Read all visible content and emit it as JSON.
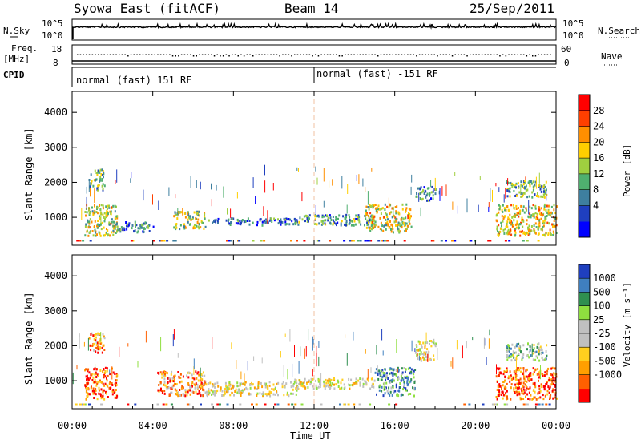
{
  "header": {
    "station": "Syowa East (fitACF)",
    "beam": "Beam 14",
    "date": "25/Sep/2011"
  },
  "top_panels": {
    "nsky_label": "N.Sky",
    "nsky_ticks": [
      "10^5",
      "10^0"
    ],
    "nsearch_label": "N.Search",
    "nsearch_ticks": [
      "10^5",
      "10^0"
    ],
    "freq_label": "Freq.",
    "freq_unit": "[MHz]",
    "freq_ticks": [
      "18",
      "8"
    ],
    "nave_label": "Nave",
    "nave_ticks": [
      "60",
      "0"
    ],
    "cpid_label": "CPID",
    "cpid_segments": [
      {
        "label": "normal (fast) 151 RF",
        "start_hour": 0
      },
      {
        "label": "normal (fast) -151 RF",
        "start_hour": 12
      }
    ]
  },
  "xaxis": {
    "ticks": [
      "00:00",
      "04:00",
      "08:00",
      "12:00",
      "16:00",
      "20:00",
      "00:00"
    ],
    "label": "Time UT"
  },
  "chart_data": [
    {
      "type": "heatmap",
      "name": "power_panel",
      "x_range_hours": [
        0,
        24
      ],
      "ylabel": "Slant Range [km]",
      "yticks": [
        "1000",
        "2000",
        "3000",
        "4000"
      ],
      "ylim": [
        200,
        4600
      ],
      "colorbar_label": "Power [dB]",
      "colorbar_ticks": [
        "28",
        "24",
        "20",
        "16",
        "12",
        "8",
        "4"
      ],
      "colors": [
        "#0000ff",
        "#1f3fbf",
        "#3e7f9f",
        "#4faf6f",
        "#9fcf3f",
        "#ffcf00",
        "#ff8f00",
        "#ff3f00",
        "#ff0000"
      ],
      "echo_regions": [
        {
          "t0": 0.6,
          "t1": 2.2,
          "r0": 500,
          "r1": 1400,
          "level": 0.55
        },
        {
          "t0": 0.8,
          "t1": 1.6,
          "r0": 1800,
          "r1": 2400,
          "level": 0.4
        },
        {
          "t0": 2.0,
          "t1": 4.0,
          "r0": 600,
          "r1": 900,
          "level": 0.3
        },
        {
          "t0": 5.0,
          "t1": 6.6,
          "r0": 700,
          "r1": 1200,
          "level": 0.5
        },
        {
          "t0": 6.6,
          "t1": 11.2,
          "r0": 800,
          "r1": 1000,
          "level": 0.25
        },
        {
          "t0": 11.0,
          "t1": 15.0,
          "r0": 800,
          "r1": 1100,
          "level": 0.35
        },
        {
          "t0": 14.5,
          "t1": 16.8,
          "r0": 600,
          "r1": 1400,
          "level": 0.55
        },
        {
          "t0": 17.0,
          "t1": 18.0,
          "r0": 1500,
          "r1": 1900,
          "level": 0.3
        },
        {
          "t0": 21.0,
          "t1": 24.0,
          "r0": 500,
          "r1": 1400,
          "level": 0.6
        },
        {
          "t0": 21.5,
          "t1": 23.5,
          "r0": 1600,
          "r1": 2100,
          "level": 0.4
        }
      ]
    },
    {
      "type": "heatmap",
      "name": "velocity_panel",
      "x_range_hours": [
        0,
        24
      ],
      "ylabel": "Slant Range [km]",
      "yticks": [
        "1000",
        "2000",
        "3000",
        "4000"
      ],
      "ylim": [
        200,
        4600
      ],
      "colorbar_label": "Velocity [m s⁻¹]",
      "colorbar_ticks": [
        "1000",
        "500",
        "100",
        "25",
        "-25",
        "-100",
        "-500",
        "-1000"
      ],
      "colors": [
        "#ff0000",
        "#ff6000",
        "#ff9f00",
        "#ffcf1f",
        "#c0c0c0",
        "#c0c0c0",
        "#8fdf3f",
        "#2f8f4f",
        "#3f7fbf",
        "#1f3fbf"
      ],
      "echo_regions": [
        {
          "t0": 0.6,
          "t1": 2.2,
          "r0": 500,
          "r1": 1400,
          "level": 0.15
        },
        {
          "t0": 0.8,
          "t1": 1.6,
          "r0": 1800,
          "r1": 2400,
          "level": 0.2
        },
        {
          "t0": 4.2,
          "t1": 6.6,
          "r0": 600,
          "r1": 1300,
          "level": 0.25
        },
        {
          "t0": 6.6,
          "t1": 11.2,
          "r0": 600,
          "r1": 1000,
          "level": 0.45
        },
        {
          "t0": 11.0,
          "t1": 15.0,
          "r0": 800,
          "r1": 1100,
          "level": 0.45
        },
        {
          "t0": 15.0,
          "t1": 17.0,
          "r0": 600,
          "r1": 1400,
          "level": 0.75
        },
        {
          "t0": 17.0,
          "t1": 18.0,
          "r0": 1600,
          "r1": 2200,
          "level": 0.45
        },
        {
          "t0": 21.0,
          "t1": 24.0,
          "r0": 500,
          "r1": 1400,
          "level": 0.15
        },
        {
          "t0": 21.5,
          "t1": 23.5,
          "r0": 1600,
          "r1": 2100,
          "level": 0.6
        }
      ]
    }
  ]
}
